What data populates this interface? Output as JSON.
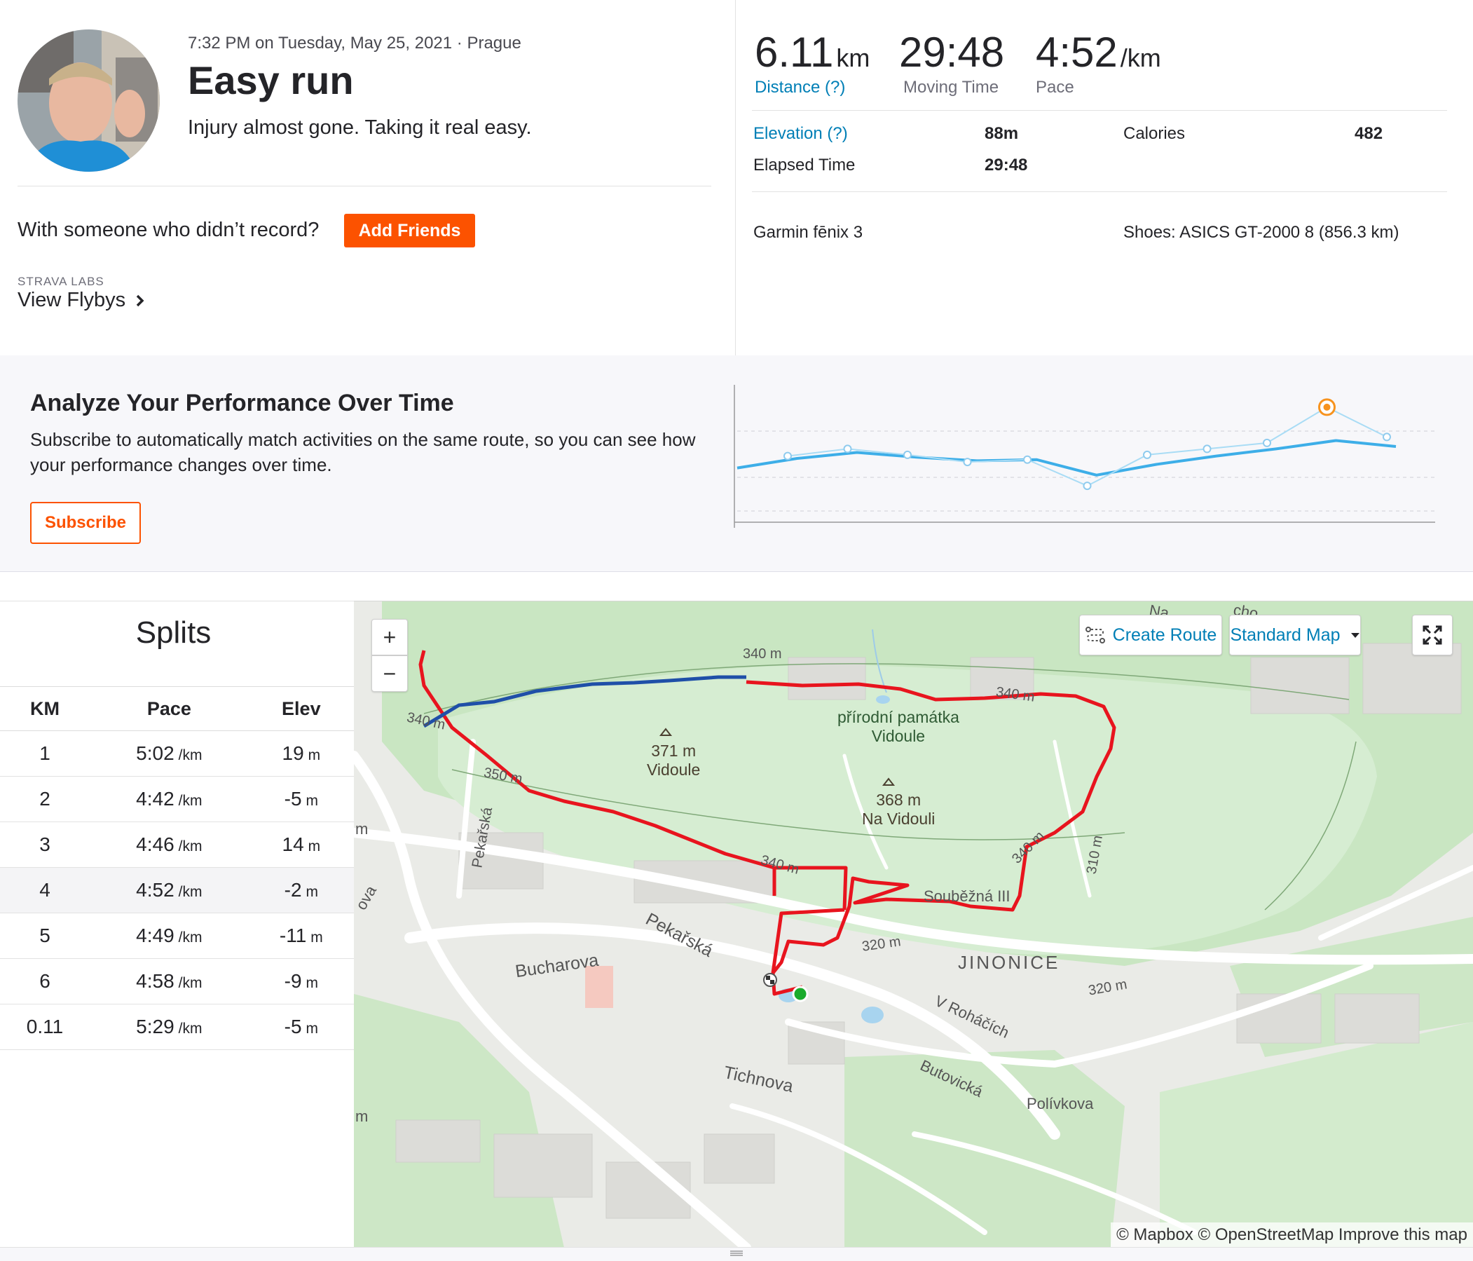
{
  "activity": {
    "date_location": "7:32 PM on Tuesday, May 25, 2021 · Prague",
    "title": "Easy run",
    "description": "Injury almost gone. Taking it real easy.",
    "with_someone": "With someone who didn’t record?",
    "add_friends_label": "Add Friends",
    "labs_label": "STRAVA LABS",
    "flybys_label": "View Flybys"
  },
  "stats": {
    "distance": {
      "value": "6.11",
      "unit": "km",
      "label": "Distance (?)"
    },
    "moving_time": {
      "value": "29:48",
      "label": "Moving Time"
    },
    "pace": {
      "value": "4:52",
      "unit": "/km",
      "label": "Pace"
    },
    "elevation_label": "Elevation (?)",
    "elevation_value": "88m",
    "calories_label": "Calories",
    "calories_value": "482",
    "elapsed_label": "Elapsed Time",
    "elapsed_value": "29:48",
    "device": "Garmin fēnix 3",
    "shoes": "Shoes: ASICS GT-2000 8 (856.3 km)"
  },
  "analyze": {
    "title": "Analyze Your Performance Over Time",
    "description": "Subscribe to automatically match activities on the same route, so you can see how your performance changes over time.",
    "subscribe_label": "Subscribe"
  },
  "perf_chart": {
    "points": [
      0.52,
      0.58,
      0.53,
      0.47,
      0.49,
      0.27,
      0.53,
      0.58,
      0.63,
      0.93,
      0.68
    ],
    "trend": [
      0.42,
      0.5,
      0.55,
      0.51,
      0.48,
      0.49,
      0.36,
      0.45,
      0.52,
      0.58,
      0.65,
      0.6
    ]
  },
  "splits": {
    "title": "Splits",
    "headers": [
      "KM",
      "Pace",
      "Elev"
    ],
    "pace_unit": "/km",
    "elev_unit": "m",
    "rows": [
      {
        "km": "1",
        "pace": "5:02",
        "elev": "19"
      },
      {
        "km": "2",
        "pace": "4:42",
        "elev": "-5"
      },
      {
        "km": "3",
        "pace": "4:46",
        "elev": "14"
      },
      {
        "km": "4",
        "pace": "4:52",
        "elev": "-2"
      },
      {
        "km": "5",
        "pace": "4:49",
        "elev": "-11"
      },
      {
        "km": "6",
        "pace": "4:58",
        "elev": "-9"
      },
      {
        "km": "0.11",
        "pace": "5:29",
        "elev": "-5"
      }
    ]
  },
  "map": {
    "zoom_in": "+",
    "zoom_out": "−",
    "create_route": "Create Route",
    "standard_map": "Standard Map",
    "attribution": "© Mapbox © OpenStreetMap Improve this map",
    "labels": {
      "c340_a": "340 m",
      "c340_b": "340 m",
      "c340_c": "340 m",
      "c340_d": "340 m",
      "c340_e": "340 m",
      "c350": "350 m",
      "c320_a": "320 m",
      "c320_b": "320 m",
      "c310": "310 m",
      "peak1_h": "371 m",
      "peak1_n": "Vidoule",
      "peak2_h": "368 m",
      "peak2_n": "Na Vidouli",
      "reserve_1": "přírodní památka",
      "reserve_2": "Vidoule",
      "pekarska_v": "Pekařská",
      "pekarska": "Pekařská",
      "bucharova": "Bucharova",
      "tichnova": "Tichnova",
      "soubezna": "Souběžná III",
      "jinonice": "JINONICE",
      "v_rohacich": "V Roháčích",
      "butovicka": "Butovická",
      "polivkova": "Polívkova",
      "edge_m1": "m",
      "edge_m2": "m",
      "edge_ova": "ova",
      "top_na": "Na",
      "top_cho": "cho"
    }
  },
  "colors": {
    "accent": "#fc5200",
    "link": "#007fb6",
    "route_red": "#e8141e",
    "route_blue": "#1f4fa8",
    "chart_blue": "#3daee8",
    "chart_marker": "#f7931e"
  }
}
